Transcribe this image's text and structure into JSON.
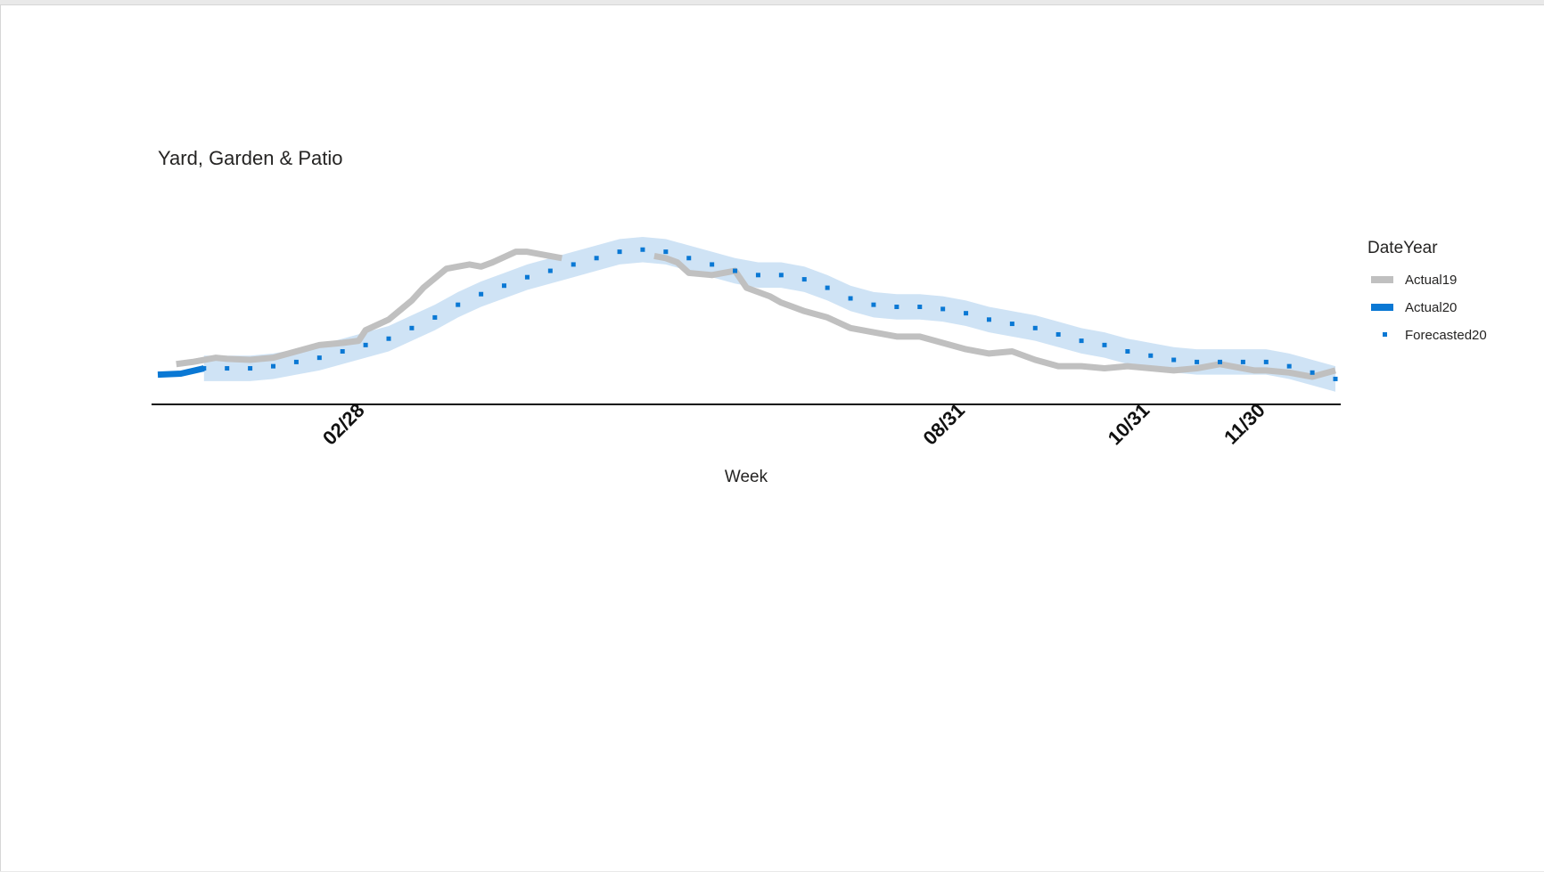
{
  "chart_data": {
    "type": "line",
    "title": "Yard, Garden & Patio",
    "xlabel": "Week",
    "ylabel": "",
    "x_ticks": [
      "02/28",
      "08/31",
      "10/31",
      "11/30"
    ],
    "x_tick_weeks": [
      9,
      35,
      43,
      48
    ],
    "x_range": [
      0,
      51
    ],
    "y_range": [
      0,
      100
    ],
    "grid": false,
    "legend": {
      "title": "DateYear",
      "position": "right",
      "entries": [
        "Actual19",
        "Actual20",
        "Forecasted20"
      ]
    },
    "colors": {
      "Actual19": "#c0c0c0",
      "Actual20": "#0a78d4",
      "Forecasted20": "#0a78d4",
      "band": "#cfe3f5"
    },
    "series": [
      {
        "name": "Actual19",
        "x": [
          0.8,
          1.5,
          2.5,
          3,
          4,
          5,
          6,
          7,
          8,
          8.7,
          9,
          10,
          11,
          11.5,
          12.5,
          13.5,
          14,
          14.5,
          15.5,
          16,
          17,
          17.5,
          21.5,
          22,
          22.5,
          23,
          24,
          25,
          25.5,
          26.5,
          27,
          28,
          29,
          30,
          31,
          31.5,
          32,
          33,
          34,
          35,
          36,
          37,
          38,
          39,
          40,
          41,
          42,
          43,
          44,
          45,
          46,
          47,
          47.5,
          48,
          49,
          50,
          51
        ],
        "y": [
          19,
          20,
          22,
          21.5,
          21,
          22,
          25,
          28,
          29,
          30,
          35,
          40,
          49,
          55,
          64,
          66,
          65,
          67,
          72,
          72,
          70,
          69,
          70,
          69,
          67,
          62,
          61,
          63,
          55,
          51,
          48,
          44,
          41,
          36,
          34,
          33,
          32,
          32,
          29,
          26,
          24,
          25,
          21,
          18,
          18,
          17,
          18,
          17,
          16,
          17,
          19,
          17,
          16,
          16,
          15,
          13,
          16
        ]
      },
      {
        "name": "Actual20",
        "x": [
          0,
          1,
          2
        ],
        "y": [
          14,
          14.5,
          17
        ]
      },
      {
        "name": "Forecasted20",
        "x": [
          2,
          3,
          4,
          5,
          6,
          7,
          8,
          9,
          10,
          11,
          12,
          13,
          14,
          15,
          16,
          17,
          18,
          19,
          20,
          21,
          22,
          23,
          24,
          25,
          26,
          27,
          28,
          29,
          30,
          31,
          32,
          33,
          34,
          35,
          36,
          37,
          38,
          39,
          40,
          41,
          42,
          43,
          44,
          45,
          46,
          47,
          48,
          49,
          50,
          51
        ],
        "y": [
          17,
          17,
          17,
          18,
          20,
          22,
          25,
          28,
          31,
          36,
          41,
          47,
          52,
          56,
          60,
          63,
          66,
          69,
          72,
          73,
          72,
          69,
          66,
          63,
          61,
          61,
          59,
          55,
          50,
          47,
          46,
          46,
          45,
          43,
          40,
          38,
          36,
          33,
          30,
          28,
          25,
          23,
          21,
          20,
          20,
          20,
          20,
          18,
          15,
          12
        ]
      }
    ]
  }
}
